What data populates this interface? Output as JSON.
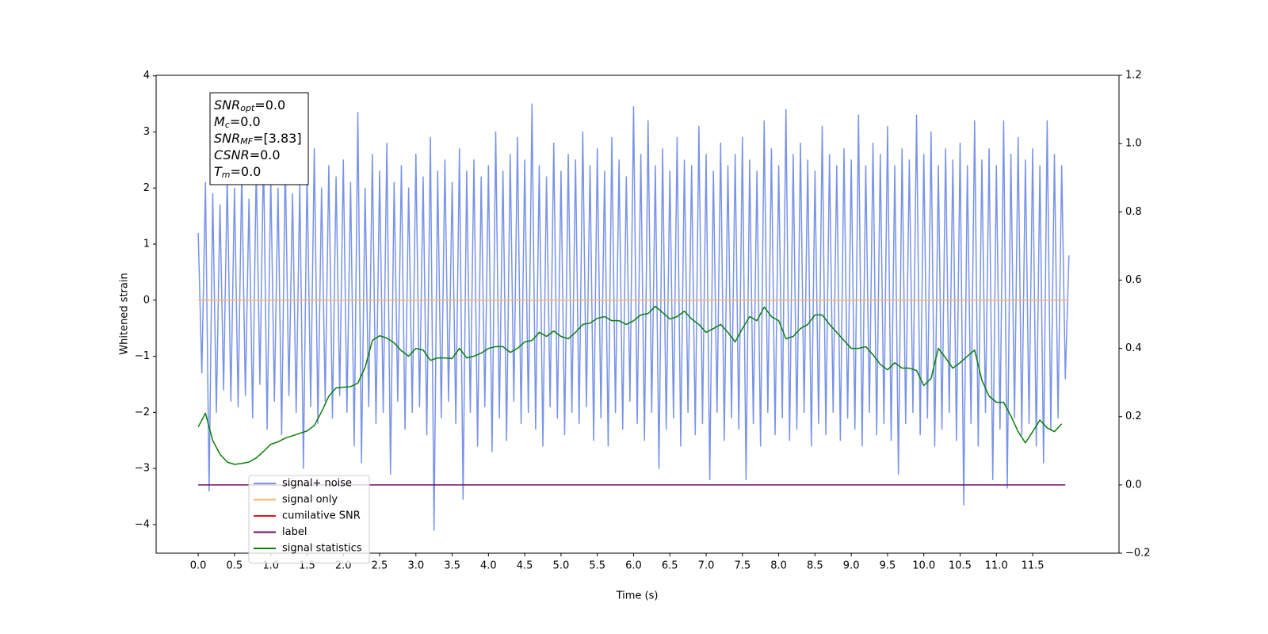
{
  "chart_data": {
    "type": "line",
    "xlabel": "Time (s)",
    "ylabel": "Whitened strain",
    "xlim": [
      -0.58,
      12.69
    ],
    "ylim": [
      -4.51,
      4.01
    ],
    "y2lim": [
      -0.2,
      1.2
    ],
    "xticks": [
      {
        "value": 0,
        "label": "0.0"
      },
      {
        "value": 0.5,
        "label": "0.5"
      },
      {
        "value": 1,
        "label": "1.0"
      },
      {
        "value": 1.5,
        "label": "1.5"
      },
      {
        "value": 2,
        "label": "2.0"
      },
      {
        "value": 2.5,
        "label": "2.5"
      },
      {
        "value": 3,
        "label": "3.0"
      },
      {
        "value": 3.5,
        "label": "3.5"
      },
      {
        "value": 4,
        "label": "4.0"
      },
      {
        "value": 4.5,
        "label": "4.5"
      },
      {
        "value": 5,
        "label": "5.0"
      },
      {
        "value": 5.5,
        "label": "5.5"
      },
      {
        "value": 6,
        "label": "6.0"
      },
      {
        "value": 6.5,
        "label": "6.5"
      },
      {
        "value": 7,
        "label": "7.0"
      },
      {
        "value": 7.5,
        "label": "7.5"
      },
      {
        "value": 8,
        "label": "8.0"
      },
      {
        "value": 8.5,
        "label": "8.5"
      },
      {
        "value": 9,
        "label": "9.0"
      },
      {
        "value": 9.5,
        "label": "9.5"
      },
      {
        "value": 10,
        "label": "10.0"
      },
      {
        "value": 10.5,
        "label": "10.5"
      },
      {
        "value": 11,
        "label": "11.0"
      },
      {
        "value": 11.5,
        "label": "11.5"
      }
    ],
    "yticks": [
      {
        "value": -4,
        "label": "−4"
      },
      {
        "value": -3,
        "label": "−3"
      },
      {
        "value": -2,
        "label": "−2"
      },
      {
        "value": -1,
        "label": "−1"
      },
      0,
      1,
      2,
      3,
      4
    ],
    "y2ticks": [
      {
        "value": -0.2,
        "label": "−0.2"
      },
      {
        "value": 0,
        "label": "0.0"
      },
      {
        "value": 0.2,
        "label": "0.2"
      },
      {
        "value": 0.4,
        "label": "0.4"
      },
      {
        "value": 0.6,
        "label": "0.6"
      },
      {
        "value": 0.8,
        "label": "0.8"
      },
      {
        "value": 1.0,
        "label": "1.0"
      },
      {
        "value": 1.2,
        "label": "1.2"
      }
    ],
    "legend": "lower left",
    "annotation": [
      {
        "symbol": "SNR",
        "sub": "opt",
        "text": "=0.0"
      },
      {
        "symbol": "M",
        "sub": "c",
        "text": "=0.0"
      },
      {
        "symbol": "SNR",
        "sub": "MF",
        "text": "=[3.83]"
      },
      {
        "symbol": "CSNR",
        "text": "=0.0"
      },
      {
        "symbol": "T",
        "sub": "m",
        "text": "=0.0"
      }
    ],
    "series": [
      {
        "name": "signal+ noise",
        "color": "#7893e8",
        "x": [
          0,
          0.05,
          0.1,
          0.15,
          0.2,
          0.25,
          0.3,
          0.35,
          0.4,
          0.45,
          0.5,
          0.55,
          0.6,
          0.65,
          0.7,
          0.75,
          0.8,
          0.85,
          0.9,
          0.95,
          1,
          1.05,
          1.1,
          1.15,
          1.2,
          1.25,
          1.3,
          1.35,
          1.4,
          1.45,
          1.5,
          1.55,
          1.6,
          1.65,
          1.7,
          1.75,
          1.8,
          1.85,
          1.9,
          1.95,
          2,
          2.05,
          2.1,
          2.15,
          2.2,
          2.25,
          2.3,
          2.35,
          2.4,
          2.45,
          2.5,
          2.55,
          2.6,
          2.65,
          2.7,
          2.75,
          2.8,
          2.85,
          2.9,
          2.95,
          3,
          3.05,
          3.1,
          3.15,
          3.2,
          3.25,
          3.3,
          3.35,
          3.4,
          3.45,
          3.5,
          3.55,
          3.6,
          3.65,
          3.7,
          3.75,
          3.8,
          3.85,
          3.9,
          3.95,
          4,
          4.05,
          4.1,
          4.15,
          4.2,
          4.25,
          4.3,
          4.35,
          4.4,
          4.45,
          4.5,
          4.55,
          4.6,
          4.65,
          4.7,
          4.75,
          4.8,
          4.85,
          4.9,
          4.95,
          5,
          5.05,
          5.1,
          5.15,
          5.2,
          5.25,
          5.3,
          5.35,
          5.4,
          5.45,
          5.5,
          5.55,
          5.6,
          5.65,
          5.7,
          5.75,
          5.8,
          5.85,
          5.9,
          5.95,
          6,
          6.05,
          6.1,
          6.15,
          6.2,
          6.25,
          6.3,
          6.35,
          6.4,
          6.45,
          6.5,
          6.55,
          6.6,
          6.65,
          6.7,
          6.75,
          6.8,
          6.85,
          6.9,
          6.95,
          7,
          7.05,
          7.1,
          7.15,
          7.2,
          7.25,
          7.3,
          7.35,
          7.4,
          7.45,
          7.5,
          7.55,
          7.6,
          7.65,
          7.7,
          7.75,
          7.8,
          7.85,
          7.9,
          7.95,
          8,
          8.05,
          8.1,
          8.15,
          8.2,
          8.25,
          8.3,
          8.35,
          8.4,
          8.45,
          8.5,
          8.55,
          8.6,
          8.65,
          8.7,
          8.75,
          8.8,
          8.85,
          8.9,
          8.95,
          9,
          9.05,
          9.1,
          9.15,
          9.2,
          9.25,
          9.3,
          9.35,
          9.4,
          9.45,
          9.5,
          9.55,
          9.6,
          9.65,
          9.7,
          9.75,
          9.8,
          9.85,
          9.9,
          9.95,
          10,
          10.05,
          10.1,
          10.15,
          10.2,
          10.25,
          10.3,
          10.35,
          10.4,
          10.45,
          10.5,
          10.55,
          10.6,
          10.65,
          10.7,
          10.75,
          10.8,
          10.85,
          10.9,
          10.95,
          11,
          11.05,
          11.1,
          11.15,
          11.2,
          11.25,
          11.3,
          11.35,
          11.4,
          11.45,
          11.5,
          11.55,
          11.6,
          11.65,
          11.7,
          11.75,
          11.8,
          11.85,
          11.9,
          11.95,
          12
        ],
        "values": [
          1.2,
          -1.3,
          2.1,
          -3.4,
          1.9,
          -2.0,
          1.7,
          -1.6,
          2.2,
          -1.8,
          2.0,
          -1.9,
          2.3,
          -1.7,
          1.8,
          -2.1,
          2.4,
          -1.5,
          2.6,
          -2.3,
          2.2,
          -1.8,
          2.0,
          -2.4,
          2.5,
          -1.7,
          1.9,
          -2.0,
          2.1,
          -3.0,
          2.3,
          -1.9,
          2.7,
          -2.2,
          2.0,
          -1.8,
          2.4,
          -2.1,
          2.2,
          -1.7,
          2.5,
          -2.0,
          2.1,
          -2.6,
          3.35,
          -2.9,
          2.0,
          -1.9,
          2.6,
          -2.2,
          2.3,
          -2.0,
          2.8,
          -3.1,
          2.1,
          -1.8,
          2.4,
          -2.3,
          2.0,
          -2.0,
          2.6,
          -1.9,
          2.2,
          -2.4,
          2.9,
          -4.1,
          2.3,
          -2.1,
          2.5,
          -1.8,
          2.1,
          -2.2,
          2.7,
          -3.55,
          2.3,
          -2.0,
          2.5,
          -2.6,
          2.2,
          -1.9,
          2.4,
          -2.7,
          3.0,
          -2.1,
          2.3,
          -2.5,
          2.6,
          -1.8,
          2.9,
          -2.2,
          2.5,
          -2.0,
          3.5,
          -2.3,
          2.4,
          -2.6,
          2.2,
          -1.9,
          2.8,
          -2.1,
          2.3,
          -2.4,
          2.6,
          -2.0,
          2.5,
          -2.2,
          3.0,
          -1.9,
          2.4,
          -2.5,
          2.7,
          -2.1,
          2.3,
          -2.6,
          2.9,
          -2.0,
          2.5,
          -2.3,
          2.2,
          -1.8,
          3.45,
          -2.2,
          2.6,
          -2.5,
          3.2,
          -2.0,
          2.4,
          -3.0,
          2.7,
          -2.3,
          2.3,
          -2.1,
          2.9,
          -2.6,
          2.5,
          -2.0,
          2.4,
          -2.4,
          3.1,
          -2.2,
          2.6,
          -3.2,
          2.3,
          -2.0,
          2.8,
          -2.5,
          2.4,
          -2.1,
          2.6,
          -2.3,
          2.9,
          -3.2,
          2.5,
          -2.2,
          2.3,
          -2.6,
          3.2,
          -2.0,
          2.7,
          -2.4,
          2.4,
          -2.1,
          3.4,
          -2.5,
          2.6,
          -2.3,
          2.8,
          -2.0,
          2.5,
          -2.6,
          2.3,
          -2.2,
          3.1,
          -2.4,
          2.6,
          -2.0,
          2.4,
          -2.5,
          2.7,
          -2.1,
          2.5,
          -2.3,
          3.3,
          -2.6,
          2.4,
          -2.0,
          2.8,
          -2.4,
          2.6,
          -2.2,
          3.1,
          -2.5,
          2.4,
          -3.1,
          2.7,
          -2.2,
          2.5,
          -2.0,
          3.3,
          -2.4,
          2.6,
          -2.1,
          3.0,
          -2.6,
          2.4,
          -2.3,
          2.7,
          -2.0,
          2.5,
          -2.5,
          2.8,
          -3.65,
          2.4,
          -2.2,
          3.2,
          -2.6,
          2.5,
          -2.0,
          2.7,
          -3.2,
          2.4,
          -2.3,
          3.2,
          -3.35,
          2.6,
          -2.1,
          2.9,
          -2.4,
          2.5,
          -2.2,
          2.7,
          -2.6,
          2.4,
          -2.9,
          3.2,
          -2.3,
          2.6,
          -2.1,
          2.4,
          -1.4,
          0.8
        ]
      },
      {
        "name": "signal only",
        "color": "#f7b96a",
        "x": [
          0,
          12
        ],
        "values": [
          0,
          0
        ]
      },
      {
        "name": "cumilative SNR",
        "color": "#e8161b",
        "x": [],
        "values": []
      },
      {
        "name": "label",
        "color": "#6c0a6c",
        "axis": "y2",
        "x": [
          0,
          11.95
        ],
        "values": [
          0,
          0
        ]
      },
      {
        "name": "signal statistics",
        "color": "#0a7f0a",
        "axis": "y2",
        "x": [
          0,
          0.1,
          0.2,
          0.3,
          0.4,
          0.5,
          0.6,
          0.7,
          0.8,
          0.9,
          1,
          1.1,
          1.2,
          1.3,
          1.4,
          1.5,
          1.6,
          1.7,
          1.8,
          1.9,
          2,
          2.1,
          2.2,
          2.3,
          2.4,
          2.5,
          2.6,
          2.7,
          2.8,
          2.9,
          3,
          3.1,
          3.2,
          3.3,
          3.4,
          3.5,
          3.6,
          3.7,
          3.8,
          3.9,
          4,
          4.1,
          4.2,
          4.3,
          4.4,
          4.5,
          4.6,
          4.7,
          4.8,
          4.9,
          5,
          5.1,
          5.2,
          5.3,
          5.4,
          5.5,
          5.6,
          5.7,
          5.8,
          5.9,
          6,
          6.1,
          6.2,
          6.3,
          6.4,
          6.5,
          6.6,
          6.7,
          6.8,
          6.9,
          7,
          7.1,
          7.2,
          7.3,
          7.4,
          7.5,
          7.6,
          7.7,
          7.8,
          7.9,
          8,
          8.1,
          8.2,
          8.3,
          8.4,
          8.5,
          8.6,
          8.7,
          8.8,
          8.9,
          9,
          9.1,
          9.2,
          9.3,
          9.4,
          9.5,
          9.6,
          9.7,
          9.8,
          9.9,
          10,
          10.1,
          10.2,
          10.3,
          10.4,
          10.5,
          10.6,
          10.7,
          10.8,
          10.9,
          11,
          11.1,
          11.2,
          11.3,
          11.4,
          11.5,
          11.6,
          11.7,
          11.8,
          11.9
        ],
        "values": [
          0.17,
          0.21,
          0.13,
          0.09,
          0.067,
          0.06,
          0.063,
          0.067,
          0.079,
          0.098,
          0.119,
          0.126,
          0.137,
          0.144,
          0.151,
          0.158,
          0.174,
          0.214,
          0.26,
          0.284,
          0.286,
          0.288,
          0.298,
          0.344,
          0.423,
          0.437,
          0.43,
          0.416,
          0.393,
          0.377,
          0.4,
          0.395,
          0.365,
          0.372,
          0.372,
          0.37,
          0.4,
          0.372,
          0.377,
          0.386,
          0.4,
          0.405,
          0.405,
          0.388,
          0.4,
          0.419,
          0.423,
          0.447,
          0.435,
          0.451,
          0.435,
          0.428,
          0.447,
          0.47,
          0.474,
          0.488,
          0.493,
          0.481,
          0.481,
          0.47,
          0.481,
          0.498,
          0.502,
          0.523,
          0.505,
          0.486,
          0.493,
          0.509,
          0.486,
          0.47,
          0.447,
          0.458,
          0.47,
          0.447,
          0.419,
          0.458,
          0.493,
          0.481,
          0.521,
          0.493,
          0.481,
          0.428,
          0.435,
          0.458,
          0.47,
          0.498,
          0.498,
          0.47,
          0.447,
          0.423,
          0.4,
          0.4,
          0.405,
          0.381,
          0.353,
          0.337,
          0.358,
          0.342,
          0.342,
          0.335,
          0.291,
          0.312,
          0.4,
          0.372,
          0.342,
          0.358,
          0.377,
          0.395,
          0.307,
          0.26,
          0.242,
          0.242,
          0.202,
          0.156,
          0.123,
          0.156,
          0.19,
          0.167,
          0.156,
          0.179
        ]
      }
    ]
  }
}
